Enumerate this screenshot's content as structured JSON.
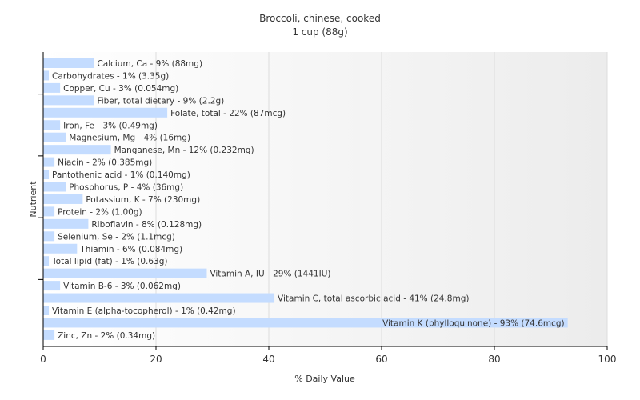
{
  "chart_data": {
    "type": "bar",
    "orientation": "horizontal",
    "title": "Broccoli, chinese, cooked",
    "subtitle": "1 cup (88g)",
    "xlabel": "% Daily Value",
    "ylabel": "Nutrient",
    "xlim": [
      0,
      100
    ],
    "xticks": [
      0,
      20,
      40,
      60,
      80,
      100
    ],
    "grid": true,
    "bar_color": "#c4dcff",
    "categories": [
      "Calcium, Ca",
      "Carbohydrates",
      "Copper, Cu",
      "Fiber, total dietary",
      "Folate, total",
      "Iron, Fe",
      "Magnesium, Mg",
      "Manganese, Mn",
      "Niacin",
      "Pantothenic acid",
      "Phosphorus, P",
      "Potassium, K",
      "Protein",
      "Riboflavin",
      "Selenium, Se",
      "Thiamin",
      "Total lipid (fat)",
      "Vitamin A, IU",
      "Vitamin B-6",
      "Vitamin C, total ascorbic acid",
      "Vitamin E (alpha-tocopherol)",
      "Vitamin K (phylloquinone)",
      "Zinc, Zn"
    ],
    "values": [
      9,
      1,
      3,
      9,
      22,
      3,
      4,
      12,
      2,
      1,
      4,
      7,
      2,
      8,
      2,
      6,
      1,
      29,
      3,
      41,
      1,
      93,
      2
    ],
    "labels": [
      "Calcium, Ca - 9% (88mg)",
      "Carbohydrates - 1% (3.35g)",
      "Copper, Cu - 3% (0.054mg)",
      "Fiber, total dietary - 9% (2.2g)",
      "Folate, total - 22% (87mcg)",
      "Iron, Fe - 3% (0.49mg)",
      "Magnesium, Mg - 4% (16mg)",
      "Manganese, Mn - 12% (0.232mg)",
      "Niacin - 2% (0.385mg)",
      "Pantothenic acid - 1% (0.140mg)",
      "Phosphorus, P - 4% (36mg)",
      "Potassium, K - 7% (230mg)",
      "Protein - 2% (1.00g)",
      "Riboflavin - 8% (0.128mg)",
      "Selenium, Se - 2% (1.1mcg)",
      "Thiamin - 6% (0.084mg)",
      "Total lipid (fat) - 1% (0.63g)",
      "Vitamin A, IU - 29% (1441IU)",
      "Vitamin B-6 - 3% (0.062mg)",
      "Vitamin C, total ascorbic acid - 41% (24.8mg)",
      "Vitamin E (alpha-tocopherol) - 1% (0.42mg)",
      "Vitamin K (phylloquinone) - 93% (74.6mcg)",
      "Zinc, Zn - 2% (0.34mg)"
    ]
  }
}
